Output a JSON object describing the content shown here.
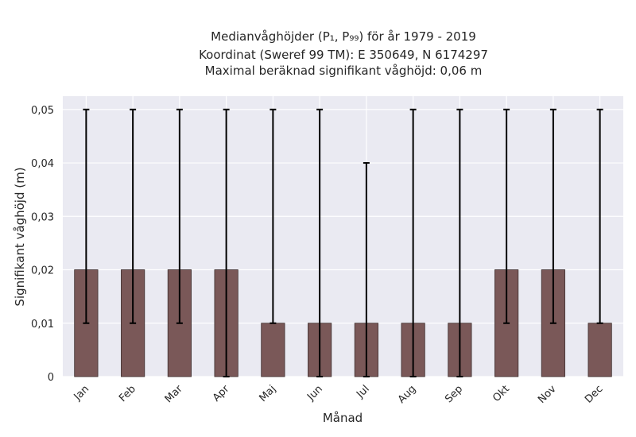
{
  "chart_data": {
    "type": "bar",
    "title_lines": [
      "Medianvåghöjder (P₁, P₉₉) för år 1979 - 2019",
      "Koordinat (Sweref 99 TM): E 350649, N 6174297",
      "Maximal beräknad signifikant våghöjd: 0,06 m"
    ],
    "xlabel": "Månad",
    "ylabel": "Signifikant våghöjd (m)",
    "categories": [
      "Jan",
      "Feb",
      "Mar",
      "Apr",
      "Maj",
      "Jun",
      "Jul",
      "Aug",
      "Sep",
      "Okt",
      "Nov",
      "Dec"
    ],
    "series": [
      {
        "values": [
          0.02,
          0.02,
          0.02,
          0.02,
          0.01,
          0.01,
          0.01,
          0.01,
          0.01,
          0.02,
          0.02,
          0.01
        ],
        "error_low": [
          0.01,
          0.01,
          0.01,
          0.0,
          0.01,
          0.0,
          0.0,
          0.0,
          0.0,
          0.01,
          0.01,
          0.01
        ],
        "error_high": [
          0.05,
          0.05,
          0.05,
          0.05,
          0.05,
          0.05,
          0.04,
          0.05,
          0.05,
          0.05,
          0.05,
          0.05
        ]
      }
    ],
    "yticks": [
      0,
      0.01,
      0.02,
      0.03,
      0.04,
      0.05
    ],
    "ytick_labels": [
      "0",
      "0,01",
      "0,02",
      "0,03",
      "0,04",
      "0,05"
    ],
    "ylim": [
      0,
      0.0525
    ],
    "grid": true,
    "colors": {
      "bar": "#7a5858",
      "plot_background": "#eaeaf2",
      "grid": "#ffffff",
      "error_bar": "#000000",
      "text": "#262626"
    }
  }
}
